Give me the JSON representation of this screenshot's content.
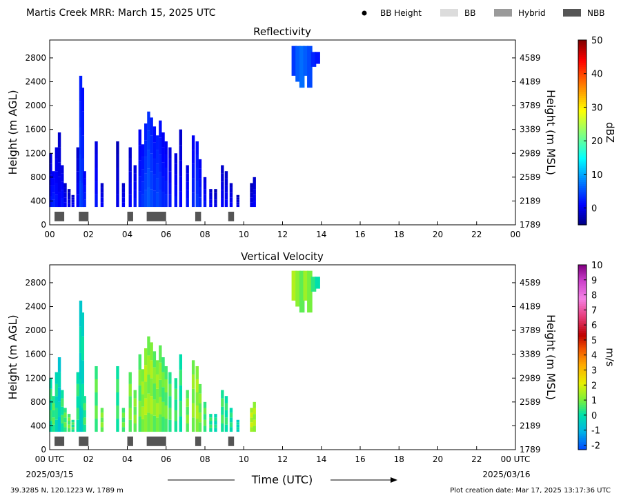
{
  "header": {
    "title": "Martis Creek MRR:  March 15, 2025 UTC",
    "legend": [
      {
        "label": "BB Height",
        "kind": "dot",
        "color": "#000000"
      },
      {
        "label": "BB",
        "kind": "swatch",
        "color": "#dcdcdc"
      },
      {
        "label": "Hybrid",
        "kind": "swatch",
        "color": "#9a9a9a"
      },
      {
        "label": "NBB",
        "kind": "swatch",
        "color": "#555555"
      }
    ]
  },
  "footer": {
    "location": "39.3285 N, 120.1223 W, 1789 m",
    "creation": "Plot creation date: Mar 17, 2025 13:17:36 UTC",
    "time_axis_label": "Time (UTC)",
    "start_date": "2025/03/15",
    "end_date": "2025/03/16"
  },
  "chart_data": [
    {
      "type": "heatmap",
      "title": "Reflectivity",
      "xlabel": "",
      "ylabel": "Height (m AGL)",
      "ylabel_right": "Height (m MSL)",
      "xlim": [
        0,
        24
      ],
      "ylim": [
        0,
        3100
      ],
      "x_ticks": [
        "00",
        "02",
        "04",
        "06",
        "08",
        "10",
        "12",
        "14",
        "16",
        "18",
        "20",
        "22",
        "00"
      ],
      "y_ticks": [
        0,
        400,
        800,
        1200,
        1600,
        2000,
        2400,
        2800
      ],
      "y_ticks_right": [
        "1789",
        "2189",
        "2589",
        "2989",
        "3389",
        "3789",
        "4189",
        "4589"
      ],
      "colorbar": {
        "label": "dBZ",
        "min": -5,
        "max": 50,
        "ticks": [
          0,
          10,
          20,
          30,
          40,
          50
        ]
      },
      "bb_type_bars": [
        {
          "start": 0.25,
          "end": 0.75,
          "type": "NBB"
        },
        {
          "start": 1.5,
          "end": 2.0,
          "type": "NBB"
        },
        {
          "start": 4.0,
          "end": 4.3,
          "type": "NBB"
        },
        {
          "start": 5.0,
          "end": 6.0,
          "type": "NBB"
        },
        {
          "start": 7.5,
          "end": 7.8,
          "type": "NBB"
        },
        {
          "start": 9.2,
          "end": 9.5,
          "type": "NBB"
        }
      ],
      "echo_columns": [
        {
          "x": 0.05,
          "top": 1200,
          "value": 2
        },
        {
          "x": 0.2,
          "top": 900,
          "value": 3
        },
        {
          "x": 0.35,
          "top": 1300,
          "value": 2
        },
        {
          "x": 0.5,
          "top": 1550,
          "value": 1
        },
        {
          "x": 0.65,
          "top": 1000,
          "value": 2
        },
        {
          "x": 0.8,
          "top": 700,
          "value": 1
        },
        {
          "x": 1.0,
          "top": 600,
          "value": 0
        },
        {
          "x": 1.2,
          "top": 500,
          "value": 1
        },
        {
          "x": 1.45,
          "top": 1300,
          "value": 1
        },
        {
          "x": 1.6,
          "top": 2500,
          "value": 5
        },
        {
          "x": 1.7,
          "top": 2300,
          "value": 4
        },
        {
          "x": 1.8,
          "top": 900,
          "value": 3
        },
        {
          "x": 2.4,
          "top": 1400,
          "value": 2
        },
        {
          "x": 2.7,
          "top": 700,
          "value": 1
        },
        {
          "x": 3.5,
          "top": 1400,
          "value": 0
        },
        {
          "x": 3.8,
          "top": 700,
          "value": 1
        },
        {
          "x": 4.15,
          "top": 1300,
          "value": 1
        },
        {
          "x": 4.4,
          "top": 1000,
          "value": 2
        },
        {
          "x": 4.65,
          "top": 1600,
          "value": 3
        },
        {
          "x": 4.8,
          "top": 1350,
          "value": 4
        },
        {
          "x": 4.95,
          "top": 1700,
          "value": 5
        },
        {
          "x": 5.1,
          "top": 1900,
          "value": 6
        },
        {
          "x": 5.25,
          "top": 1800,
          "value": 5
        },
        {
          "x": 5.4,
          "top": 1650,
          "value": 4
        },
        {
          "x": 5.55,
          "top": 1500,
          "value": 5
        },
        {
          "x": 5.7,
          "top": 1750,
          "value": 4
        },
        {
          "x": 5.85,
          "top": 1550,
          "value": 3
        },
        {
          "x": 6.0,
          "top": 1400,
          "value": 3
        },
        {
          "x": 6.2,
          "top": 1300,
          "value": 2
        },
        {
          "x": 6.5,
          "top": 1200,
          "value": 2
        },
        {
          "x": 6.75,
          "top": 1600,
          "value": 1
        },
        {
          "x": 7.1,
          "top": 1000,
          "value": 2
        },
        {
          "x": 7.4,
          "top": 1500,
          "value": 3
        },
        {
          "x": 7.6,
          "top": 1400,
          "value": 4
        },
        {
          "x": 7.75,
          "top": 1100,
          "value": 3
        },
        {
          "x": 8.0,
          "top": 800,
          "value": 2
        },
        {
          "x": 8.3,
          "top": 600,
          "value": 1
        },
        {
          "x": 8.55,
          "top": 600,
          "value": 0
        },
        {
          "x": 8.9,
          "top": 1000,
          "value": 1
        },
        {
          "x": 9.1,
          "top": 900,
          "value": 1
        },
        {
          "x": 9.35,
          "top": 700,
          "value": 1
        },
        {
          "x": 9.7,
          "top": 500,
          "value": 0
        },
        {
          "x": 10.4,
          "top": 700,
          "value": 0
        },
        {
          "x": 10.55,
          "top": 800,
          "value": 1
        }
      ],
      "echo_aloft": [
        {
          "x": 12.6,
          "bottom": 2500,
          "top": 3000,
          "value": 4
        },
        {
          "x": 12.8,
          "bottom": 2400,
          "top": 3000,
          "value": 6
        },
        {
          "x": 13.0,
          "bottom": 2300,
          "top": 3000,
          "value": 7
        },
        {
          "x": 13.2,
          "bottom": 2500,
          "top": 3000,
          "value": 6
        },
        {
          "x": 13.4,
          "bottom": 2300,
          "top": 3000,
          "value": 5
        },
        {
          "x": 13.6,
          "bottom": 2650,
          "top": 2900,
          "value": 3
        },
        {
          "x": 13.8,
          "bottom": 2700,
          "top": 2900,
          "value": 2
        }
      ]
    },
    {
      "type": "heatmap",
      "title": "Vertical Velocity",
      "xlabel": "Time (UTC)",
      "ylabel": "Height (m AGL)",
      "ylabel_right": "Height (m MSL)",
      "xlim": [
        0,
        24
      ],
      "ylim": [
        0,
        3100
      ],
      "x_ticks": [
        "00 UTC",
        "02",
        "04",
        "06",
        "08",
        "10",
        "12",
        "14",
        "16",
        "18",
        "20",
        "22",
        "00 UTC"
      ],
      "y_ticks": [
        0,
        400,
        800,
        1200,
        1600,
        2000,
        2400,
        2800
      ],
      "y_ticks_right": [
        "1789",
        "2189",
        "2589",
        "2989",
        "3389",
        "3789",
        "4189",
        "4589"
      ],
      "colorbar": {
        "label": "m/s",
        "min": -2.3,
        "max": 10,
        "ticks": [
          -2,
          -1,
          0,
          1,
          2,
          3,
          4,
          5,
          6,
          7,
          8,
          9,
          10
        ]
      },
      "bb_type_bars": [
        {
          "start": 0.25,
          "end": 0.75,
          "type": "NBB"
        },
        {
          "start": 1.5,
          "end": 2.0,
          "type": "NBB"
        },
        {
          "start": 4.0,
          "end": 4.3,
          "type": "NBB"
        },
        {
          "start": 5.0,
          "end": 6.0,
          "type": "NBB"
        },
        {
          "start": 7.5,
          "end": 7.8,
          "type": "NBB"
        },
        {
          "start": 9.2,
          "end": 9.5,
          "type": "NBB"
        }
      ],
      "echo_columns": [
        {
          "x": 0.05,
          "top": 1200,
          "value": 0.2
        },
        {
          "x": 0.2,
          "top": 900,
          "value": 0.5
        },
        {
          "x": 0.35,
          "top": 1300,
          "value": 0.0
        },
        {
          "x": 0.5,
          "top": 1550,
          "value": -0.5
        },
        {
          "x": 0.65,
          "top": 1000,
          "value": 0.3
        },
        {
          "x": 0.8,
          "top": 700,
          "value": 0.6
        },
        {
          "x": 1.0,
          "top": 600,
          "value": 0.8
        },
        {
          "x": 1.2,
          "top": 500,
          "value": 0.4
        },
        {
          "x": 1.45,
          "top": 1300,
          "value": 0.2
        },
        {
          "x": 1.6,
          "top": 2500,
          "value": -0.4
        },
        {
          "x": 1.7,
          "top": 2300,
          "value": -0.2
        },
        {
          "x": 1.8,
          "top": 900,
          "value": 0.4
        },
        {
          "x": 2.4,
          "top": 1400,
          "value": 0.6
        },
        {
          "x": 2.7,
          "top": 700,
          "value": 1.0
        },
        {
          "x": 3.5,
          "top": 1400,
          "value": 0.3
        },
        {
          "x": 3.8,
          "top": 700,
          "value": 0.7
        },
        {
          "x": 4.15,
          "top": 1300,
          "value": 0.9
        },
        {
          "x": 4.4,
          "top": 1000,
          "value": 1.0
        },
        {
          "x": 4.65,
          "top": 1600,
          "value": 0.8
        },
        {
          "x": 4.8,
          "top": 1350,
          "value": 1.2
        },
        {
          "x": 4.95,
          "top": 1700,
          "value": 1.4
        },
        {
          "x": 5.1,
          "top": 1900,
          "value": 1.1
        },
        {
          "x": 5.25,
          "top": 1800,
          "value": 1.3
        },
        {
          "x": 5.4,
          "top": 1650,
          "value": 0.9
        },
        {
          "x": 5.55,
          "top": 1500,
          "value": 1.2
        },
        {
          "x": 5.7,
          "top": 1750,
          "value": 1.0
        },
        {
          "x": 5.85,
          "top": 1550,
          "value": 0.7
        },
        {
          "x": 6.0,
          "top": 1400,
          "value": 0.8
        },
        {
          "x": 6.2,
          "top": 1300,
          "value": 0.5
        },
        {
          "x": 6.5,
          "top": 1200,
          "value": 0.4
        },
        {
          "x": 6.75,
          "top": 1600,
          "value": 0.2
        },
        {
          "x": 7.1,
          "top": 1000,
          "value": 0.9
        },
        {
          "x": 7.4,
          "top": 1500,
          "value": 1.1
        },
        {
          "x": 7.6,
          "top": 1400,
          "value": 1.3
        },
        {
          "x": 7.75,
          "top": 1100,
          "value": 1.0
        },
        {
          "x": 8.0,
          "top": 800,
          "value": 0.6
        },
        {
          "x": 8.3,
          "top": 600,
          "value": 0.3
        },
        {
          "x": 8.55,
          "top": 600,
          "value": 0.0
        },
        {
          "x": 8.9,
          "top": 1000,
          "value": 0.4
        },
        {
          "x": 9.1,
          "top": 900,
          "value": 0.2
        },
        {
          "x": 9.35,
          "top": 700,
          "value": 0.1
        },
        {
          "x": 9.7,
          "top": 500,
          "value": -0.2
        },
        {
          "x": 10.4,
          "top": 700,
          "value": 1.6
        },
        {
          "x": 10.55,
          "top": 800,
          "value": 1.4
        }
      ],
      "echo_aloft": [
        {
          "x": 12.6,
          "bottom": 2500,
          "top": 3000,
          "value": 1.6
        },
        {
          "x": 12.8,
          "bottom": 2400,
          "top": 3000,
          "value": 1.2
        },
        {
          "x": 13.0,
          "bottom": 2300,
          "top": 3000,
          "value": 0.8
        },
        {
          "x": 13.2,
          "bottom": 2500,
          "top": 3000,
          "value": 1.4
        },
        {
          "x": 13.4,
          "bottom": 2300,
          "top": 3000,
          "value": 1.0
        },
        {
          "x": 13.6,
          "bottom": 2650,
          "top": 2900,
          "value": 0.4
        },
        {
          "x": 13.8,
          "bottom": 2700,
          "top": 2900,
          "value": 0.0
        }
      ]
    }
  ]
}
